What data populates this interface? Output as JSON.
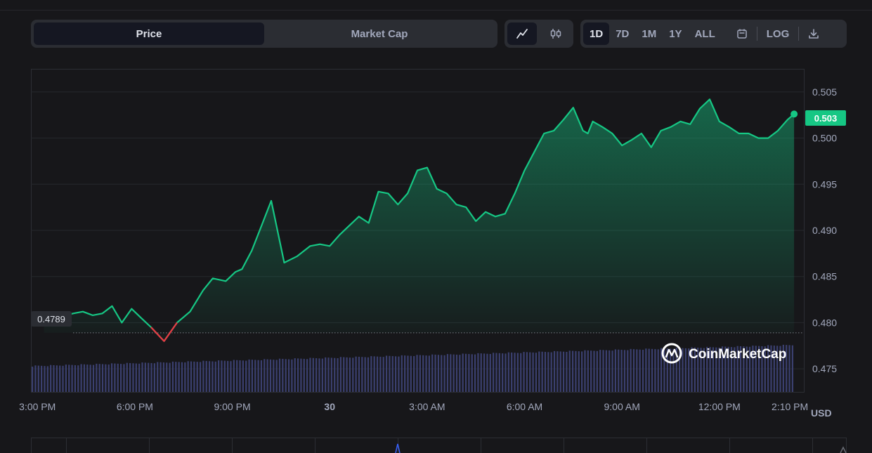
{
  "tabs": [
    {
      "label": "Price",
      "active": true
    },
    {
      "label": "Market Cap",
      "active": false
    }
  ],
  "chart_types": [
    {
      "icon": "line-chart-icon",
      "active": true
    },
    {
      "icon": "candlestick-icon",
      "active": false
    }
  ],
  "ranges": [
    {
      "label": "1D",
      "active": true
    },
    {
      "label": "7D",
      "active": false
    },
    {
      "label": "1M",
      "active": false
    },
    {
      "label": "1Y",
      "active": false
    },
    {
      "label": "ALL",
      "active": false
    }
  ],
  "toolbar": {
    "log_label": "LOG",
    "calendar_icon": "calendar-icon",
    "download_icon": "download-icon"
  },
  "watermark": "CoinMarketCap",
  "colors": {
    "line": "#16c784",
    "down": "#ea3943",
    "volume": "#3b4070",
    "current_badge": "#16c784"
  },
  "chart_data": {
    "type": "line",
    "currency": "USD",
    "open_price_label": "0.4789",
    "open_price": 0.4789,
    "current_price_label": "0.503",
    "current_price": 0.503,
    "ylim": [
      0.4725,
      0.5075
    ],
    "y_ticks": [
      "0.505",
      "0.500",
      "0.495",
      "0.490",
      "0.485",
      "0.480",
      "0.475"
    ],
    "x_tick_labels": [
      "3:00 PM",
      "6:00 PM",
      "9:00 PM",
      "30",
      "3:00 AM",
      "6:00 AM",
      "9:00 AM",
      "12:00 PM",
      "2:10 PM"
    ],
    "x_tick_hours": [
      0.0,
      3.0,
      6.0,
      9.0,
      12.0,
      15.0,
      18.0,
      21.0,
      23.17
    ],
    "xlim_hours": [
      -0.2,
      23.6
    ],
    "x_hours": [
      0.2,
      0.5,
      0.8,
      1.1,
      1.4,
      1.7,
      2.0,
      2.3,
      2.6,
      2.9,
      3.2,
      3.5,
      3.9,
      4.3,
      4.7,
      5.1,
      5.4,
      5.8,
      6.1,
      6.3,
      6.6,
      6.9,
      7.2,
      7.6,
      8.0,
      8.4,
      8.7,
      9.0,
      9.3,
      9.6,
      9.9,
      10.2,
      10.5,
      10.8,
      11.1,
      11.4,
      11.7,
      12.0,
      12.3,
      12.6,
      12.9,
      13.2,
      13.5,
      13.8,
      14.1,
      14.4,
      14.7,
      15.0,
      15.3,
      15.6,
      15.9,
      16.2,
      16.5,
      16.8,
      16.95,
      17.1,
      17.4,
      17.7,
      18.0,
      18.3,
      18.6,
      18.9,
      19.2,
      19.5,
      19.8,
      20.1,
      20.4,
      20.7,
      21.0,
      21.3,
      21.6,
      21.9,
      22.2,
      22.5,
      22.8,
      23.1,
      23.3
    ],
    "values": [
      0.4798,
      0.4803,
      0.4807,
      0.481,
      0.4812,
      0.4808,
      0.481,
      0.4818,
      0.48,
      0.4815,
      0.4805,
      0.4795,
      0.478,
      0.48,
      0.4812,
      0.4835,
      0.4848,
      0.4845,
      0.4855,
      0.4858,
      0.4878,
      0.4905,
      0.4932,
      0.4865,
      0.4872,
      0.4883,
      0.4885,
      0.4883,
      0.4895,
      0.4905,
      0.4915,
      0.4908,
      0.4942,
      0.494,
      0.4928,
      0.494,
      0.4965,
      0.4968,
      0.4945,
      0.494,
      0.4928,
      0.4925,
      0.491,
      0.492,
      0.4915,
      0.4918,
      0.494,
      0.4965,
      0.4985,
      0.5005,
      0.5008,
      0.502,
      0.5033,
      0.5008,
      0.5005,
      0.5018,
      0.5012,
      0.5005,
      0.4992,
      0.4998,
      0.5005,
      0.499,
      0.5008,
      0.5012,
      0.5018,
      0.5015,
      0.5032,
      0.5042,
      0.5018,
      0.5012,
      0.5005,
      0.5005,
      0.5,
      0.5,
      0.5008,
      0.502,
      0.5026
    ],
    "grid": true,
    "legend": "none"
  }
}
